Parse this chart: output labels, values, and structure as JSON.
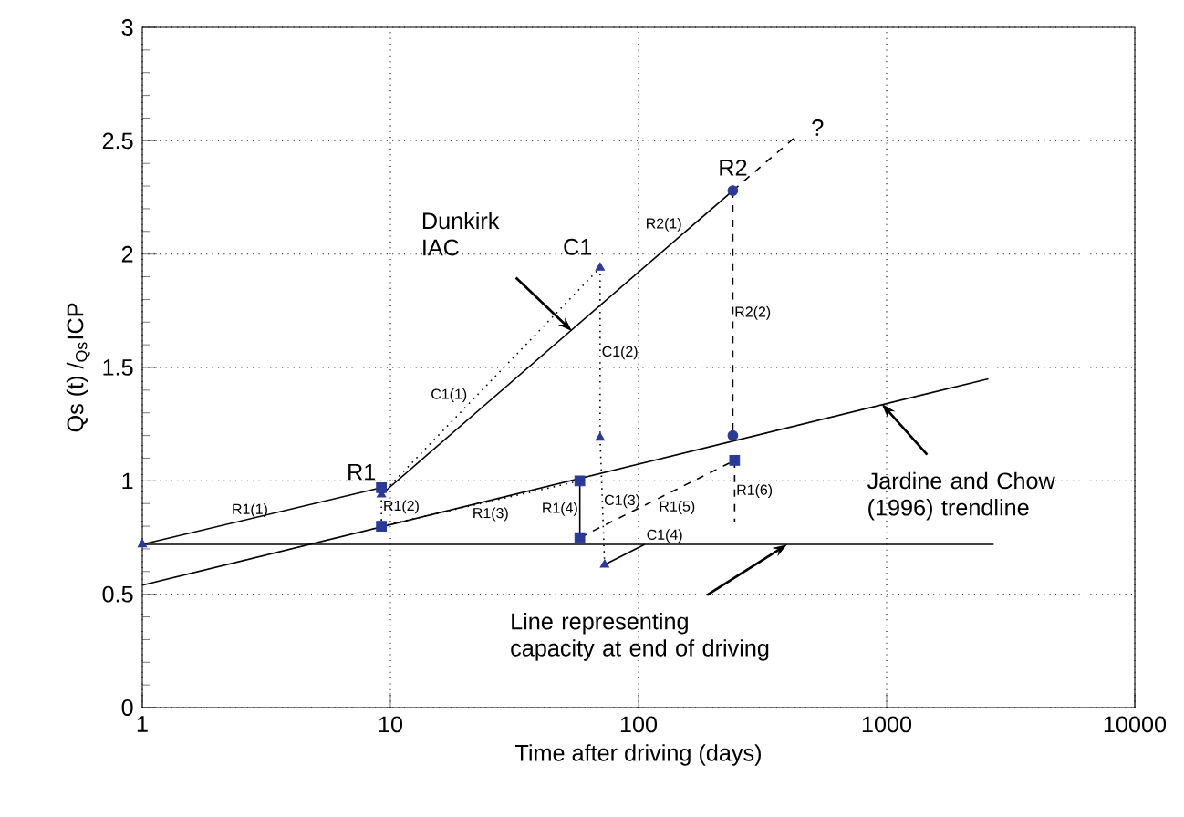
{
  "chart_data": {
    "type": "line",
    "xlabel": "Time after driving  (days)",
    "ylabel": "Qs (t) /$_{Qs}$ICP",
    "log": "x",
    "xlim": [
      1,
      10000
    ],
    "ylim": [
      0,
      3
    ],
    "xticks": [
      1,
      10,
      100,
      1000,
      10000
    ],
    "yticks": [
      0,
      0.5,
      1,
      1.5,
      2,
      2.5,
      3
    ],
    "grid": true,
    "series": [
      {
        "color": "#000000",
        "line_style": "solid",
        "marker": "none",
        "x": [
          1,
          2570
        ],
        "values": [
          0.54,
          1.45
        ]
      },
      {
        "color": "#000000",
        "line_style": "solid",
        "marker": "none",
        "x": [
          1,
          2700
        ],
        "values": [
          0.72,
          0.72
        ]
      },
      {
        "name": "R2(1)",
        "color": "#000000",
        "line_style": "solid",
        "marker": "none",
        "x": [
          9.2,
          240
        ],
        "values": [
          0.94,
          2.28
        ]
      },
      {
        "color": "#000000",
        "line_style": "dashed",
        "marker": "none",
        "x": [
          240,
          422
        ],
        "values": [
          2.28,
          2.51
        ]
      },
      {
        "name": "R1(1)",
        "color": "#000000",
        "line_style": "solid",
        "marker": "none",
        "x": [
          1,
          9.2
        ],
        "values": [
          0.72,
          0.97
        ]
      },
      {
        "name": "R1(2)",
        "color": "#000000",
        "line_style": "dotted",
        "marker": "none",
        "x": [
          9.2,
          9.2
        ],
        "values": [
          0.97,
          0.8
        ]
      },
      {
        "name": "R1(3)",
        "color": "#000000",
        "line_style": "dotted",
        "marker": "none",
        "x": [
          9.2,
          58
        ],
        "values": [
          0.8,
          1.0
        ]
      },
      {
        "name": "R1(4)",
        "color": "#000000",
        "line_style": "solid",
        "marker": "none",
        "x": [
          58,
          58
        ],
        "values": [
          1.0,
          0.75
        ]
      },
      {
        "name": "R1(5)",
        "color": "#000000",
        "line_style": "dashed",
        "marker": "none",
        "x": [
          58,
          244
        ],
        "values": [
          0.75,
          1.09
        ]
      },
      {
        "name": "R1(6)",
        "color": "#000000",
        "line_style": "dashed",
        "marker": "none",
        "x": [
          244,
          244
        ],
        "values": [
          1.09,
          0.82
        ]
      },
      {
        "name": "C1(1)",
        "color": "#000000",
        "line_style": "dotted",
        "marker": "none",
        "x": [
          9.2,
          70
        ],
        "values": [
          0.94,
          1.94
        ]
      },
      {
        "name": "C1(2)",
        "color": "#000000",
        "line_style": "dotted",
        "marker": "none",
        "x": [
          70,
          70
        ],
        "values": [
          1.94,
          1.19
        ]
      },
      {
        "name": "C1(3)",
        "color": "#000000",
        "line_style": "dotted",
        "marker": "none",
        "x": [
          70,
          73
        ],
        "values": [
          1.19,
          0.63
        ]
      },
      {
        "name": "C1(4)",
        "color": "#000000",
        "line_style": "solid",
        "marker": "none",
        "x": [
          73,
          106
        ],
        "values": [
          0.63,
          0.72
        ]
      },
      {
        "name": "R2(2)",
        "color": "#000000",
        "line_style": "dashed",
        "marker": "none",
        "x": [
          240,
          240
        ],
        "values": [
          2.28,
          1.2
        ]
      },
      {
        "type": "scatter",
        "color": "#2b3a97",
        "marker": "triangle",
        "x": [
          1,
          9.2,
          70,
          70,
          73
        ],
        "values": [
          0.72,
          0.94,
          1.94,
          1.19,
          0.63
        ]
      },
      {
        "type": "scatter",
        "color": "#2b3a97",
        "marker": "square",
        "x": [
          9.2,
          9.2,
          58,
          58,
          244
        ],
        "values": [
          0.97,
          0.8,
          1.0,
          0.75,
          1.09
        ]
      },
      {
        "type": "scatter",
        "color": "#2b3a97",
        "marker": "circle",
        "x": [
          240,
          240
        ],
        "values": [
          2.28,
          1.2
        ]
      }
    ],
    "annotations": [
      {
        "text": "R1",
        "x": 9.2,
        "y": 0.97
      },
      {
        "text": "C1",
        "x": 70,
        "y": 1.94
      },
      {
        "text": "R2",
        "x": 240,
        "y": 2.28
      },
      {
        "text": "?",
        "x": 422,
        "y": 2.51
      },
      {
        "text": "Dunkirk IAC",
        "x": 54,
        "y": 1.66
      },
      {
        "text": "Jardine and Chow (1996) trendline",
        "x": 955,
        "y": 1.34
      },
      {
        "text": "Line representing capacity at end of driving",
        "x": 398,
        "y": 0.72
      }
    ]
  }
}
